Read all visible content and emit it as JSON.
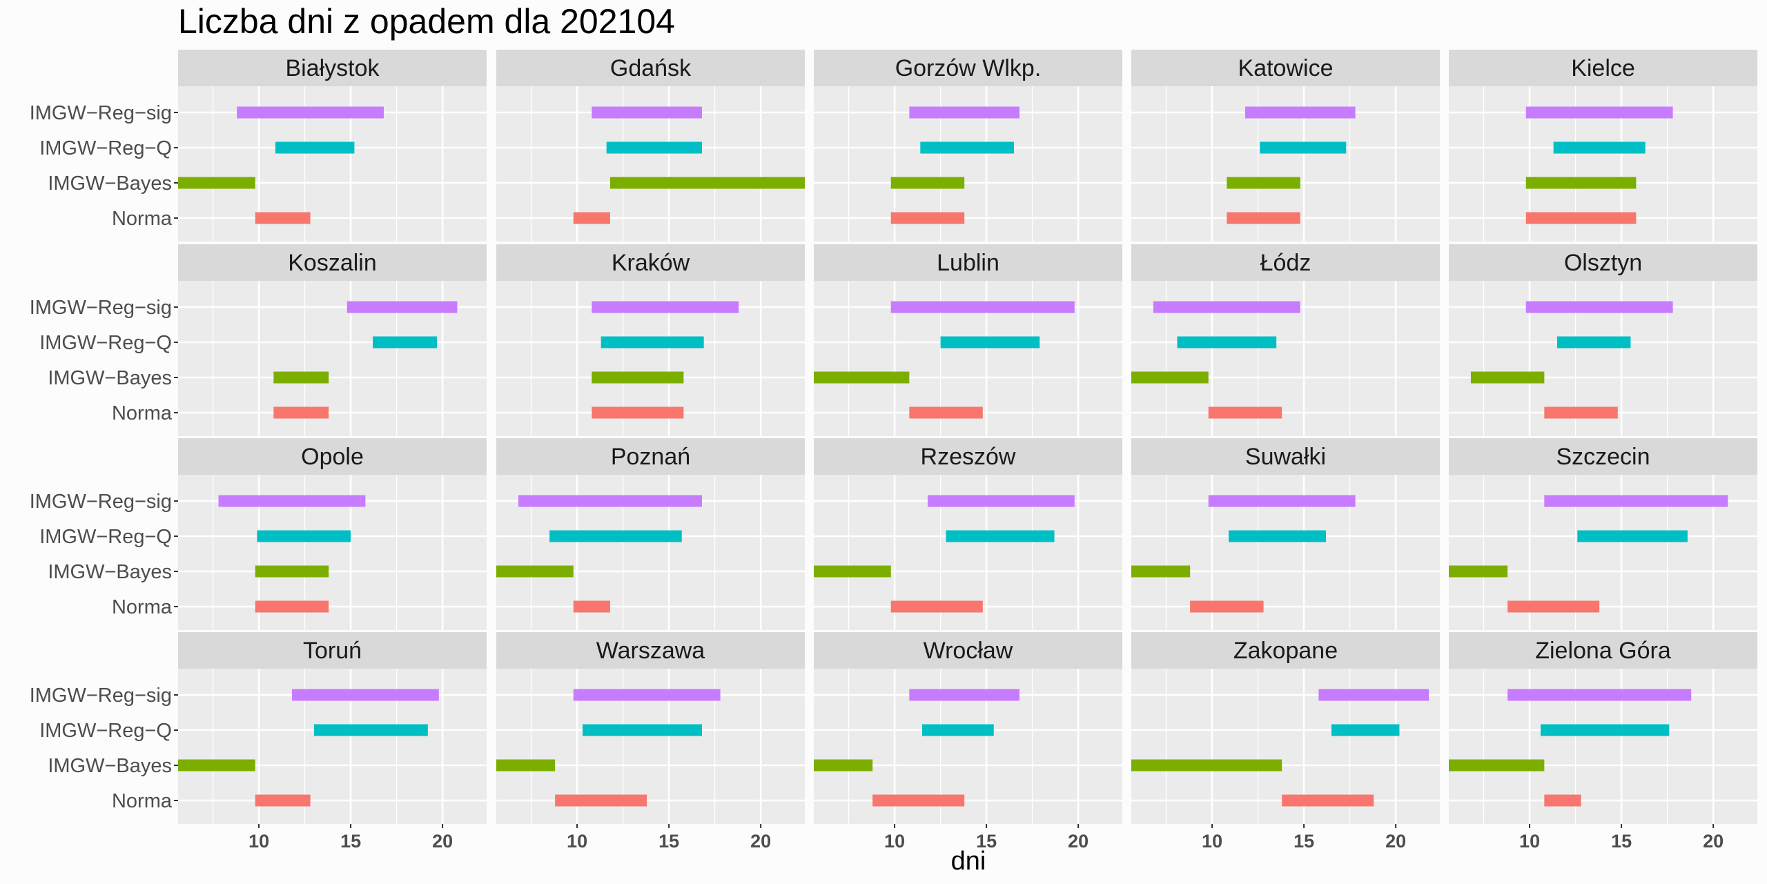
{
  "chart_data": {
    "type": "bar",
    "title": "Liczba dni z opadem dla 202104",
    "xlabel": "dni",
    "ylabel": "",
    "xlim": [
      5.6,
      22.4
    ],
    "x_ticks": [
      10,
      15,
      20
    ],
    "grid": true,
    "categories": [
      "IMGW−Reg−sig",
      "IMGW−Reg−Q",
      "IMGW−Bayes",
      "Norma"
    ],
    "colors": {
      "IMGW−Reg−sig": "#C77CFF",
      "IMGW−Reg−Q": "#00BFC4",
      "IMGW−Bayes": "#7CAE00",
      "Norma": "#F8766D"
    },
    "panels": [
      {
        "name": "Białystok",
        "ranges": [
          [
            8.8,
            16.8
          ],
          [
            10.9,
            15.2
          ],
          [
            5.6,
            9.8
          ],
          [
            9.8,
            12.8
          ]
        ]
      },
      {
        "name": "Gdańsk",
        "ranges": [
          [
            10.8,
            16.8
          ],
          [
            11.6,
            16.8
          ],
          [
            11.8,
            22.4
          ],
          [
            9.8,
            11.8
          ]
        ]
      },
      {
        "name": "Gorzów Wlkp.",
        "ranges": [
          [
            10.8,
            16.8
          ],
          [
            11.4,
            16.5
          ],
          [
            9.8,
            13.8
          ],
          [
            9.8,
            13.8
          ]
        ]
      },
      {
        "name": "Katowice",
        "ranges": [
          [
            11.8,
            17.8
          ],
          [
            12.6,
            17.3
          ],
          [
            10.8,
            14.8
          ],
          [
            10.8,
            14.8
          ]
        ]
      },
      {
        "name": "Kielce",
        "ranges": [
          [
            9.8,
            17.8
          ],
          [
            11.3,
            16.3
          ],
          [
            9.8,
            15.8
          ],
          [
            9.8,
            15.8
          ]
        ]
      },
      {
        "name": "Koszalin",
        "ranges": [
          [
            14.8,
            20.8
          ],
          [
            16.2,
            19.7
          ],
          [
            10.8,
            13.8
          ],
          [
            10.8,
            13.8
          ]
        ]
      },
      {
        "name": "Kraków",
        "ranges": [
          [
            10.8,
            18.8
          ],
          [
            11.3,
            16.9
          ],
          [
            10.8,
            15.8
          ],
          [
            10.8,
            15.8
          ]
        ]
      },
      {
        "name": "Lublin",
        "ranges": [
          [
            9.8,
            19.8
          ],
          [
            12.5,
            17.9
          ],
          [
            5.6,
            10.8
          ],
          [
            10.8,
            14.8
          ]
        ]
      },
      {
        "name": "Łódz",
        "ranges": [
          [
            6.8,
            14.8
          ],
          [
            8.1,
            13.5
          ],
          [
            5.6,
            9.8
          ],
          [
            9.8,
            13.8
          ]
        ]
      },
      {
        "name": "Olsztyn",
        "ranges": [
          [
            9.8,
            17.8
          ],
          [
            11.5,
            15.5
          ],
          [
            6.8,
            10.8
          ],
          [
            10.8,
            14.8
          ]
        ]
      },
      {
        "name": "Opole",
        "ranges": [
          [
            7.8,
            15.8
          ],
          [
            9.9,
            15.0
          ],
          [
            9.8,
            13.8
          ],
          [
            9.8,
            13.8
          ]
        ]
      },
      {
        "name": "Poznań",
        "ranges": [
          [
            6.8,
            16.8
          ],
          [
            8.5,
            15.7
          ],
          [
            5.6,
            9.8
          ],
          [
            9.8,
            11.8
          ]
        ]
      },
      {
        "name": "Rzeszów",
        "ranges": [
          [
            11.8,
            19.8
          ],
          [
            12.8,
            18.7
          ],
          [
            5.6,
            9.8
          ],
          [
            9.8,
            14.8
          ]
        ]
      },
      {
        "name": "Suwałki",
        "ranges": [
          [
            9.8,
            17.8
          ],
          [
            10.9,
            16.2
          ],
          [
            5.6,
            8.8
          ],
          [
            8.8,
            12.8
          ]
        ]
      },
      {
        "name": "Szczecin",
        "ranges": [
          [
            10.8,
            20.8
          ],
          [
            12.6,
            18.6
          ],
          [
            5.6,
            8.8
          ],
          [
            8.8,
            13.8
          ]
        ]
      },
      {
        "name": "Toruń",
        "ranges": [
          [
            11.8,
            19.8
          ],
          [
            13.0,
            19.2
          ],
          [
            5.6,
            9.8
          ],
          [
            9.8,
            12.8
          ]
        ]
      },
      {
        "name": "Warszawa",
        "ranges": [
          [
            9.8,
            17.8
          ],
          [
            10.3,
            16.8
          ],
          [
            5.6,
            8.8
          ],
          [
            8.8,
            13.8
          ]
        ]
      },
      {
        "name": "Wrocław",
        "ranges": [
          [
            10.8,
            16.8
          ],
          [
            11.5,
            15.4
          ],
          [
            5.6,
            8.8
          ],
          [
            8.8,
            13.8
          ]
        ]
      },
      {
        "name": "Zakopane",
        "ranges": [
          [
            15.8,
            21.8
          ],
          [
            16.5,
            20.2
          ],
          [
            5.6,
            13.8
          ],
          [
            13.8,
            18.8
          ]
        ]
      },
      {
        "name": "Zielona Góra",
        "ranges": [
          [
            8.8,
            18.8
          ],
          [
            10.6,
            17.6
          ],
          [
            5.6,
            10.8
          ],
          [
            10.8,
            12.8
          ]
        ]
      }
    ]
  }
}
